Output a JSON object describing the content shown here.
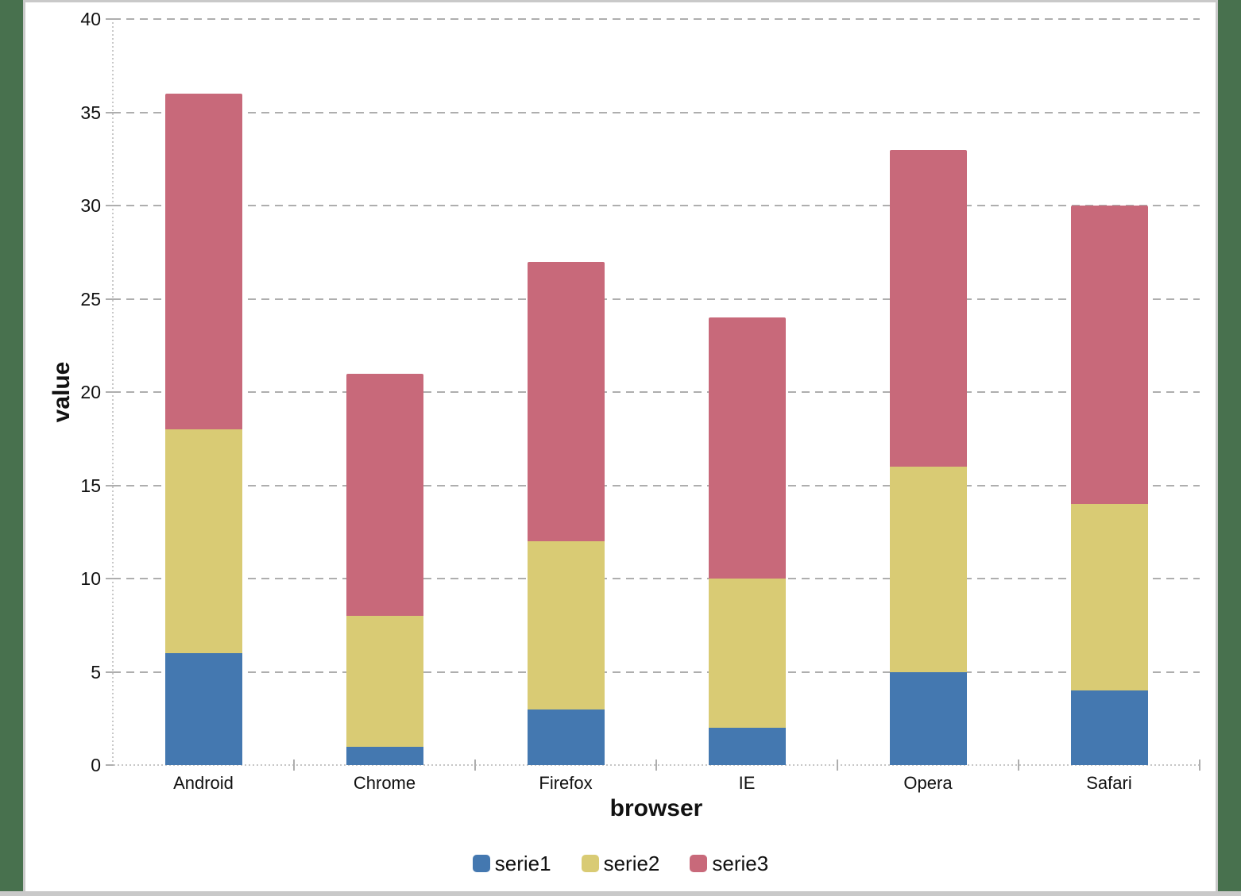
{
  "chart_data": {
    "type": "bar",
    "stacked": true,
    "xlabel": "browser",
    "ylabel": "value",
    "categories": [
      "Android",
      "Chrome",
      "Firefox",
      "IE",
      "Opera",
      "Safari"
    ],
    "series": [
      {
        "name": "serie1",
        "color": "#4478B0",
        "values": [
          6,
          1,
          3,
          2,
          5,
          4
        ]
      },
      {
        "name": "serie2",
        "color": "#D9CB74",
        "values": [
          12,
          7,
          9,
          8,
          11,
          10
        ]
      },
      {
        "name": "serie3",
        "color": "#C8697A",
        "values": [
          18,
          13,
          15,
          14,
          17,
          16
        ]
      }
    ],
    "stack_totals": [
      36,
      21,
      27,
      24,
      33,
      30
    ],
    "ylim": [
      0,
      40
    ],
    "ytick_step": 5,
    "ytick_labels": [
      "0",
      "5",
      "10",
      "15",
      "20",
      "25",
      "30",
      "35",
      "40"
    ],
    "grid": "horizontal dashed",
    "legend_position": "bottom"
  },
  "frame": {
    "background_color": "#48714E",
    "border_color": "#C9C9C9",
    "panel_color": "#FFFFFF",
    "gridline_color": "#AEAEAE",
    "axis_line_color": "#C9C9C9",
    "text_color": "#111111"
  }
}
